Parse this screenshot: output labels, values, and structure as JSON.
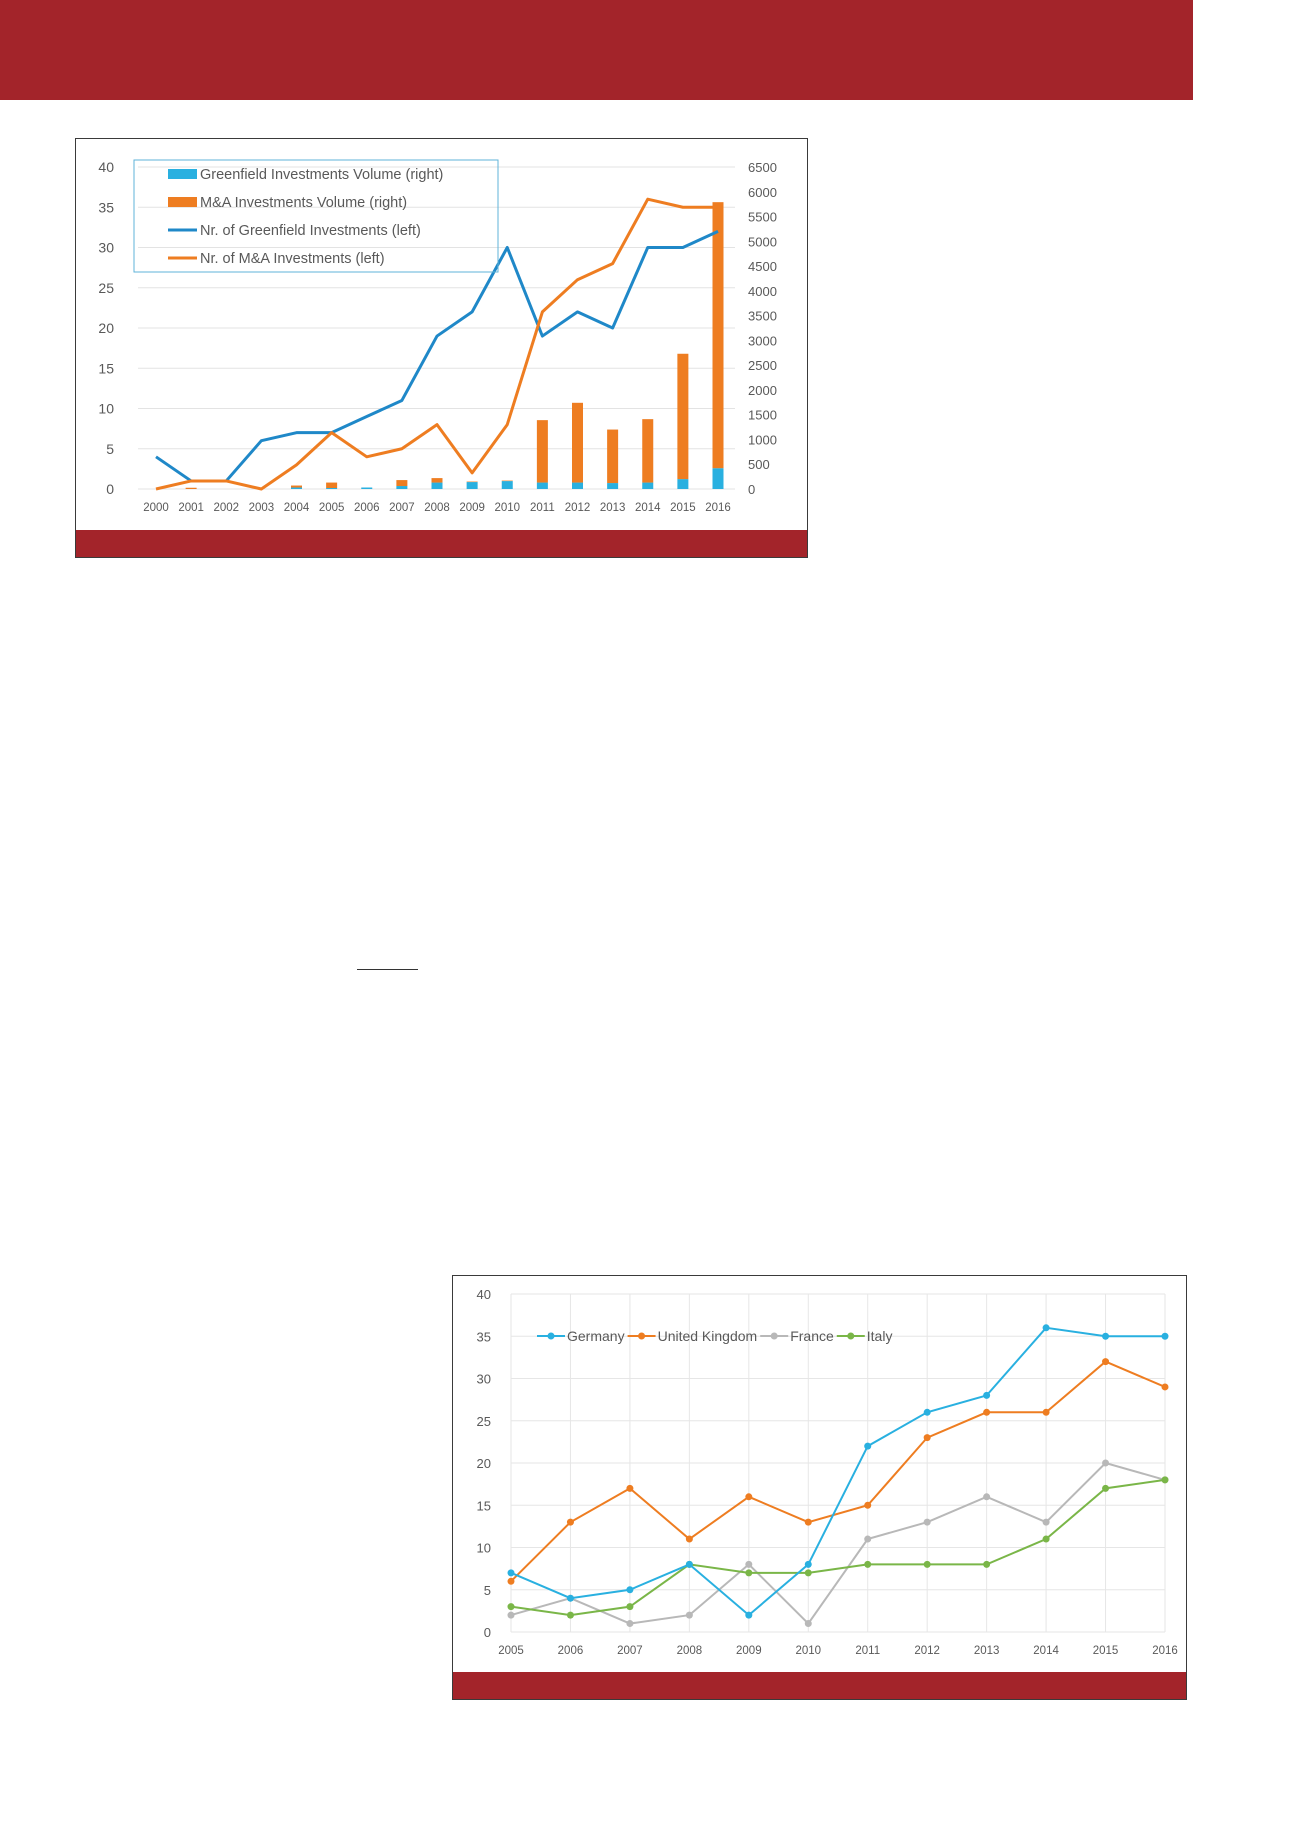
{
  "colors": {
    "header": "#a3242a",
    "greenfield_bar": "#29b0e0",
    "ma_bar": "#ee7d21",
    "greenfield_line": "#1f88c8",
    "ma_line": "#ee7d21",
    "germany": "#29b0e0",
    "uk": "#ee7d21",
    "france": "#b8b8b8",
    "italy": "#7ab648"
  },
  "chart_data": [
    {
      "type": "bar+line",
      "categories": [
        "2000",
        "2001",
        "2002",
        "2003",
        "2004",
        "2005",
        "2006",
        "2007",
        "2008",
        "2009",
        "2010",
        "2011",
        "2012",
        "2013",
        "2014",
        "2015",
        "2016"
      ],
      "left_axis": {
        "range": [
          0,
          40
        ],
        "ticks": [
          "0",
          "5",
          "10",
          "15",
          "20",
          "25",
          "30",
          "35",
          "40"
        ]
      },
      "right_axis": {
        "range": [
          0,
          6500
        ],
        "ticks": [
          "0",
          "500",
          "1000",
          "1500",
          "2000",
          "2500",
          "3000",
          "3500",
          "4000",
          "4500",
          "5000",
          "5500",
          "6000",
          "6500"
        ]
      },
      "legend_placement": "top-left",
      "grid": true,
      "series": [
        {
          "name": "Greenfield Investments Volume (right)",
          "kind": "bar",
          "axis": "right",
          "stack": "vol",
          "values": [
            0,
            0,
            0,
            0,
            30,
            20,
            30,
            60,
            130,
            140,
            160,
            130,
            130,
            120,
            130,
            200,
            420
          ]
        },
        {
          "name": "M&A Investments Volume (right)",
          "kind": "bar",
          "axis": "right",
          "stack": "vol",
          "values": [
            0,
            25,
            0,
            0,
            40,
            110,
            0,
            120,
            90,
            10,
            10,
            1260,
            1610,
            1080,
            1280,
            2530,
            5370
          ]
        },
        {
          "name": "Nr. of Greenfield Investments (left)",
          "kind": "line",
          "axis": "left",
          "values": [
            4,
            1,
            1,
            6,
            7,
            7,
            9,
            11,
            19,
            22,
            30,
            19,
            22,
            20,
            30,
            30,
            32
          ]
        },
        {
          "name": "Nr. of M&A Investments (left)",
          "kind": "line",
          "axis": "left",
          "values": [
            0,
            1,
            1,
            0,
            3,
            7,
            4,
            5,
            8,
            2,
            8,
            22,
            26,
            28,
            36,
            35,
            35
          ]
        }
      ]
    },
    {
      "type": "line",
      "categories": [
        "2005",
        "2006",
        "2007",
        "2008",
        "2009",
        "2010",
        "2011",
        "2012",
        "2013",
        "2014",
        "2015",
        "2016"
      ],
      "ylim": [
        0,
        40
      ],
      "yticks": [
        "0",
        "5",
        "10",
        "15",
        "20",
        "25",
        "30",
        "35",
        "40"
      ],
      "legend_placement": "top-left",
      "grid": true,
      "series": [
        {
          "name": "Germany",
          "values": [
            7,
            4,
            5,
            8,
            2,
            8,
            22,
            26,
            28,
            36,
            35,
            35
          ]
        },
        {
          "name": "United Kingdom",
          "values": [
            6,
            13,
            17,
            11,
            16,
            13,
            15,
            23,
            26,
            26,
            32,
            29
          ]
        },
        {
          "name": "France",
          "values": [
            2,
            4,
            1,
            2,
            8,
            1,
            11,
            13,
            16,
            13,
            20,
            18
          ]
        },
        {
          "name": "Italy",
          "values": [
            3,
            2,
            3,
            8,
            7,
            7,
            8,
            8,
            8,
            11,
            17,
            18
          ]
        }
      ]
    }
  ]
}
